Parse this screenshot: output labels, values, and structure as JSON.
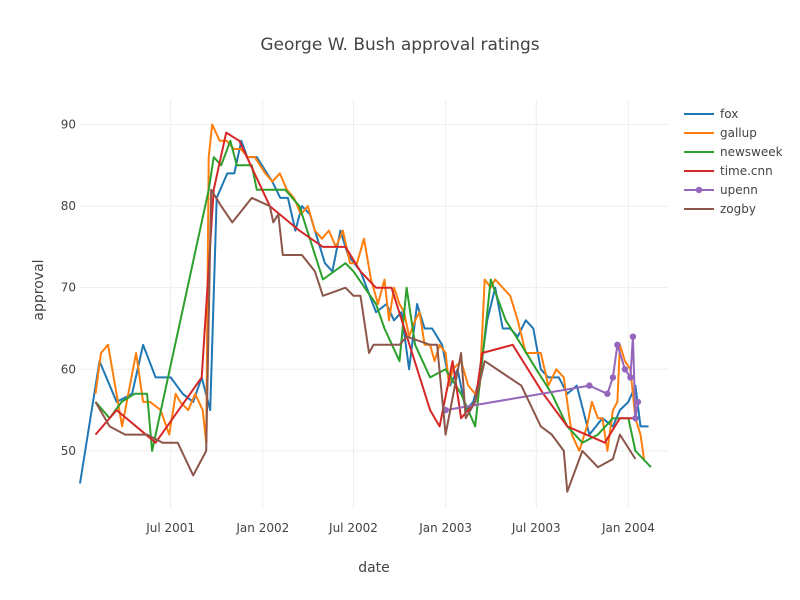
{
  "chart_data": {
    "type": "line",
    "title": "George W. Bush approval ratings",
    "xlabel": "date",
    "ylabel": "approval",
    "xlim": [
      "2001-01-01",
      "2004-03-20"
    ],
    "ylim": [
      43,
      93
    ],
    "x_ticks": [
      {
        "date": "2001-07-01",
        "label": "Jul 2001"
      },
      {
        "date": "2002-01-01",
        "label": "Jan 2002"
      },
      {
        "date": "2002-07-01",
        "label": "Jul 2002"
      },
      {
        "date": "2003-01-01",
        "label": "Jan 2003"
      },
      {
        "date": "2003-07-01",
        "label": "Jul 2003"
      },
      {
        "date": "2004-01-01",
        "label": "Jan 2004"
      }
    ],
    "y_ticks": [
      50,
      60,
      70,
      80,
      90
    ],
    "grid": true,
    "legend_position": "top-right",
    "series": [
      {
        "name": "fox",
        "color": "#1f77b4",
        "markers": false,
        "points": [
          [
            "2001-01-01",
            46
          ],
          [
            "2001-02-09",
            61
          ],
          [
            "2001-03-15",
            56
          ],
          [
            "2001-04-15",
            57
          ],
          [
            "2001-05-07",
            63
          ],
          [
            "2001-06-01",
            59
          ],
          [
            "2001-07-01",
            59
          ],
          [
            "2001-07-25",
            57
          ],
          [
            "2001-08-15",
            56
          ],
          [
            "2001-09-01",
            59
          ],
          [
            "2001-09-18",
            55
          ],
          [
            "2001-10-01",
            81
          ],
          [
            "2001-10-22",
            84
          ],
          [
            "2001-11-05",
            84
          ],
          [
            "2001-11-19",
            88
          ],
          [
            "2001-12-01",
            86
          ],
          [
            "2001-12-20",
            86
          ],
          [
            "2002-01-20",
            83
          ],
          [
            "2002-02-05",
            81
          ],
          [
            "2002-02-20",
            81
          ],
          [
            "2002-03-07",
            77
          ],
          [
            "2002-03-20",
            80
          ],
          [
            "2002-04-05",
            79
          ],
          [
            "2002-04-20",
            76
          ],
          [
            "2002-05-05",
            73
          ],
          [
            "2002-05-20",
            72
          ],
          [
            "2002-06-05",
            77
          ],
          [
            "2002-06-20",
            74
          ],
          [
            "2002-07-15",
            72
          ],
          [
            "2002-08-15",
            67
          ],
          [
            "2002-09-05",
            68
          ],
          [
            "2002-09-20",
            66
          ],
          [
            "2002-10-05",
            67
          ],
          [
            "2002-10-20",
            60
          ],
          [
            "2002-11-05",
            68
          ],
          [
            "2002-11-20",
            65
          ],
          [
            "2002-12-05",
            65
          ],
          [
            "2002-12-25",
            63
          ],
          [
            "2003-01-10",
            58
          ],
          [
            "2003-01-25",
            60
          ],
          [
            "2003-02-10",
            55
          ],
          [
            "2003-02-25",
            56
          ],
          [
            "2003-03-10",
            59
          ],
          [
            "2003-03-25",
            66
          ],
          [
            "2003-04-10",
            70
          ],
          [
            "2003-04-25",
            65
          ],
          [
            "2003-05-10",
            65
          ],
          [
            "2003-05-25",
            64
          ],
          [
            "2003-06-10",
            66
          ],
          [
            "2003-06-25",
            65
          ],
          [
            "2003-07-10",
            60
          ],
          [
            "2003-07-25",
            59
          ],
          [
            "2003-08-15",
            59
          ],
          [
            "2003-09-01",
            57
          ],
          [
            "2003-09-20",
            58
          ],
          [
            "2003-10-15",
            52
          ],
          [
            "2003-11-10",
            54
          ],
          [
            "2003-12-01",
            53
          ],
          [
            "2003-12-15",
            55
          ],
          [
            "2004-01-01",
            56
          ],
          [
            "2004-01-15",
            58
          ],
          [
            "2004-01-25",
            53
          ],
          [
            "2004-02-10",
            53
          ]
        ]
      },
      {
        "name": "gallup",
        "color": "#ff7f0e",
        "markers": false,
        "points": [
          [
            "2001-02-01",
            57
          ],
          [
            "2001-02-12",
            62
          ],
          [
            "2001-02-26",
            63
          ],
          [
            "2001-03-12",
            58
          ],
          [
            "2001-03-26",
            53
          ],
          [
            "2001-04-23",
            62
          ],
          [
            "2001-05-07",
            56
          ],
          [
            "2001-05-21",
            56
          ],
          [
            "2001-06-11",
            55
          ],
          [
            "2001-06-28",
            52
          ],
          [
            "2001-07-11",
            57
          ],
          [
            "2001-07-20",
            56
          ],
          [
            "2001-08-05",
            55
          ],
          [
            "2001-08-19",
            57
          ],
          [
            "2001-09-03",
            55
          ],
          [
            "2001-09-10",
            51
          ],
          [
            "2001-09-15",
            86
          ],
          [
            "2001-09-22",
            90
          ],
          [
            "2001-10-07",
            88
          ],
          [
            "2001-10-21",
            88
          ],
          [
            "2001-11-04",
            87
          ],
          [
            "2001-11-18",
            87
          ],
          [
            "2001-12-02",
            86
          ],
          [
            "2001-12-16",
            86
          ],
          [
            "2002-01-06",
            84
          ],
          [
            "2002-01-20",
            83
          ],
          [
            "2002-02-04",
            84
          ],
          [
            "2002-02-18",
            82
          ],
          [
            "2002-03-04",
            81
          ],
          [
            "2002-03-18",
            79
          ],
          [
            "2002-04-01",
            80
          ],
          [
            "2002-04-15",
            77
          ],
          [
            "2002-04-29",
            76
          ],
          [
            "2002-05-13",
            77
          ],
          [
            "2002-05-27",
            75
          ],
          [
            "2002-06-10",
            77
          ],
          [
            "2002-06-24",
            73
          ],
          [
            "2002-07-08",
            73
          ],
          [
            "2002-07-22",
            76
          ],
          [
            "2002-08-05",
            71
          ],
          [
            "2002-08-19",
            68
          ],
          [
            "2002-09-01",
            71
          ],
          [
            "2002-09-10",
            66
          ],
          [
            "2002-09-20",
            70
          ],
          [
            "2002-10-01",
            68
          ],
          [
            "2002-10-10",
            67
          ],
          [
            "2002-10-20",
            64
          ],
          [
            "2002-11-01",
            66
          ],
          [
            "2002-11-10",
            67
          ],
          [
            "2002-11-20",
            63
          ],
          [
            "2002-12-01",
            63
          ],
          [
            "2002-12-10",
            61
          ],
          [
            "2002-12-20",
            63
          ],
          [
            "2003-01-01",
            62
          ],
          [
            "2003-01-08",
            58
          ],
          [
            "2003-01-15",
            60
          ],
          [
            "2003-02-01",
            61
          ],
          [
            "2003-02-15",
            58
          ],
          [
            "2003-03-01",
            57
          ],
          [
            "2003-03-10",
            58
          ],
          [
            "2003-03-20",
            71
          ],
          [
            "2003-04-01",
            70
          ],
          [
            "2003-04-10",
            71
          ],
          [
            "2003-04-25",
            70
          ],
          [
            "2003-05-10",
            69
          ],
          [
            "2003-05-25",
            66
          ],
          [
            "2003-06-10",
            62
          ],
          [
            "2003-06-25",
            62
          ],
          [
            "2003-07-10",
            62
          ],
          [
            "2003-07-25",
            58
          ],
          [
            "2003-08-10",
            60
          ],
          [
            "2003-08-25",
            59
          ],
          [
            "2003-09-10",
            52
          ],
          [
            "2003-09-25",
            50
          ],
          [
            "2003-10-10",
            53
          ],
          [
            "2003-10-20",
            56
          ],
          [
            "2003-11-01",
            54
          ],
          [
            "2003-11-10",
            54
          ],
          [
            "2003-11-20",
            50
          ],
          [
            "2003-12-01",
            55
          ],
          [
            "2003-12-10",
            56
          ],
          [
            "2003-12-15",
            63
          ],
          [
            "2003-12-25",
            61
          ],
          [
            "2004-01-05",
            60
          ],
          [
            "2004-01-15",
            54
          ],
          [
            "2004-01-25",
            52
          ],
          [
            "2004-02-01",
            49
          ]
        ]
      },
      {
        "name": "newsweek",
        "color": "#2ca02c",
        "markers": false,
        "points": [
          [
            "2001-02-01",
            56
          ],
          [
            "2001-03-01",
            54
          ],
          [
            "2001-03-25",
            56
          ],
          [
            "2001-04-20",
            57
          ],
          [
            "2001-05-15",
            57
          ],
          [
            "2001-05-25",
            50
          ],
          [
            "2001-09-15",
            82
          ],
          [
            "2001-09-25",
            86
          ],
          [
            "2001-10-10",
            85
          ],
          [
            "2001-10-28",
            88
          ],
          [
            "2001-11-10",
            85
          ],
          [
            "2001-12-10",
            85
          ],
          [
            "2001-12-20",
            82
          ],
          [
            "2002-02-15",
            82
          ],
          [
            "2002-03-15",
            80
          ],
          [
            "2002-05-01",
            71
          ],
          [
            "2002-06-15",
            73
          ],
          [
            "2002-07-01",
            72
          ],
          [
            "2002-08-15",
            68
          ],
          [
            "2002-09-01",
            65
          ],
          [
            "2002-10-01",
            61
          ],
          [
            "2002-10-15",
            70
          ],
          [
            "2002-11-01",
            63
          ],
          [
            "2002-12-01",
            59
          ],
          [
            "2003-01-01",
            60
          ],
          [
            "2003-02-01",
            57
          ],
          [
            "2003-03-01",
            53
          ],
          [
            "2003-04-01",
            71
          ],
          [
            "2003-05-01",
            66
          ],
          [
            "2003-06-01",
            63
          ],
          [
            "2003-07-01",
            60
          ],
          [
            "2003-08-01",
            57
          ],
          [
            "2003-09-01",
            53
          ],
          [
            "2003-10-01",
            51
          ],
          [
            "2003-11-01",
            52
          ],
          [
            "2003-12-01",
            54
          ],
          [
            "2004-01-01",
            54
          ],
          [
            "2004-01-15",
            50
          ],
          [
            "2004-02-15",
            48
          ]
        ]
      },
      {
        "name": "time.cnn",
        "color": "#d62728",
        "markers": false,
        "points": [
          [
            "2001-02-01",
            52
          ],
          [
            "2001-03-15",
            55
          ],
          [
            "2001-06-01",
            51
          ],
          [
            "2001-09-01",
            59
          ],
          [
            "2001-09-25",
            82
          ],
          [
            "2001-10-20",
            89
          ],
          [
            "2001-11-15",
            88
          ],
          [
            "2002-01-15",
            80
          ],
          [
            "2002-03-15",
            77
          ],
          [
            "2002-05-01",
            75
          ],
          [
            "2002-06-15",
            75
          ],
          [
            "2002-07-15",
            72
          ],
          [
            "2002-08-15",
            70
          ],
          [
            "2002-09-15",
            70
          ],
          [
            "2002-12-01",
            55
          ],
          [
            "2002-12-20",
            53
          ],
          [
            "2003-01-15",
            61
          ],
          [
            "2003-02-01",
            54
          ],
          [
            "2003-03-01",
            56
          ],
          [
            "2003-03-15",
            62
          ],
          [
            "2003-05-15",
            63
          ],
          [
            "2003-07-15",
            57
          ],
          [
            "2003-09-01",
            53
          ],
          [
            "2003-11-15",
            51
          ],
          [
            "2003-12-15",
            54
          ],
          [
            "2004-01-01",
            54
          ],
          [
            "2004-01-20",
            54
          ]
        ]
      },
      {
        "name": "upenn",
        "color": "#9467bd",
        "markers": true,
        "points": [
          [
            "2003-01-01",
            55
          ],
          [
            "2003-10-15",
            58
          ],
          [
            "2003-11-20",
            57
          ],
          [
            "2003-12-01",
            59
          ],
          [
            "2003-12-10",
            63
          ],
          [
            "2003-12-25",
            60
          ],
          [
            "2004-01-05",
            59
          ],
          [
            "2004-01-10",
            64
          ],
          [
            "2004-01-15",
            54
          ],
          [
            "2004-01-20",
            56
          ]
        ]
      },
      {
        "name": "zogby",
        "color": "#8c564b",
        "markers": false,
        "points": [
          [
            "2001-02-01",
            56
          ],
          [
            "2001-03-01",
            53
          ],
          [
            "2001-04-01",
            52
          ],
          [
            "2001-05-15",
            52
          ],
          [
            "2001-06-15",
            51
          ],
          [
            "2001-07-15",
            51
          ],
          [
            "2001-08-15",
            47
          ],
          [
            "2001-09-10",
            50
          ],
          [
            "2001-09-20",
            82
          ],
          [
            "2001-10-10",
            80
          ],
          [
            "2001-11-01",
            78
          ],
          [
            "2001-12-10",
            81
          ],
          [
            "2002-01-15",
            80
          ],
          [
            "2002-01-22",
            78
          ],
          [
            "2002-02-01",
            79
          ],
          [
            "2002-02-10",
            74
          ],
          [
            "2002-03-20",
            74
          ],
          [
            "2002-04-15",
            72
          ],
          [
            "2002-05-01",
            69
          ],
          [
            "2002-06-15",
            70
          ],
          [
            "2002-07-01",
            69
          ],
          [
            "2002-07-15",
            69
          ],
          [
            "2002-08-01",
            62
          ],
          [
            "2002-08-10",
            63
          ],
          [
            "2002-09-15",
            63
          ],
          [
            "2002-10-01",
            63
          ],
          [
            "2002-10-15",
            64
          ],
          [
            "2002-12-01",
            63
          ],
          [
            "2002-12-15",
            63
          ],
          [
            "2003-01-01",
            52
          ],
          [
            "2003-02-01",
            62
          ],
          [
            "2003-02-10",
            54
          ],
          [
            "2003-03-01",
            56
          ],
          [
            "2003-03-20",
            61
          ],
          [
            "2003-06-01",
            58
          ],
          [
            "2003-07-10",
            53
          ],
          [
            "2003-08-01",
            52
          ],
          [
            "2003-08-25",
            50
          ],
          [
            "2003-09-01",
            45
          ],
          [
            "2003-10-01",
            50
          ],
          [
            "2003-11-01",
            48
          ],
          [
            "2003-12-01",
            49
          ],
          [
            "2003-12-15",
            52
          ],
          [
            "2004-01-15",
            49
          ]
        ]
      }
    ]
  }
}
